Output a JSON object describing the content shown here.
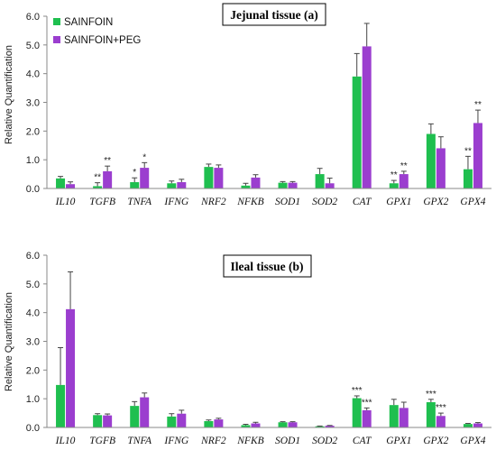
{
  "colors": {
    "sainfoin": "#1fbf4f",
    "sainfoin_peg": "#9b3ecf",
    "errorbar": "#444444",
    "axis": "#888888"
  },
  "chart_data": [
    {
      "type": "bar",
      "title": "Jejunal tissue (a)",
      "ylabel": "Relative Quantification",
      "ylim": [
        0,
        6
      ],
      "yticks": [
        "0.0",
        "1.0",
        "2.0",
        "3.0",
        "4.0",
        "5.0",
        "6.0"
      ],
      "categories": [
        "IL10",
        "TGFB",
        "TNFA",
        "IFNG",
        "NRF2",
        "NFKB",
        "SOD1",
        "SOD2",
        "CAT",
        "GPX1",
        "GPX2",
        "GPX4"
      ],
      "legend": [
        "SAINFOIN",
        "SAINFOIN+PEG"
      ],
      "series": [
        {
          "name": "SAINFOIN",
          "values": [
            0.35,
            0.08,
            0.22,
            0.18,
            0.75,
            0.1,
            0.2,
            0.5,
            3.9,
            0.18,
            1.9,
            0.67
          ],
          "errors": [
            0.07,
            0.12,
            0.15,
            0.08,
            0.1,
            0.08,
            0.04,
            0.2,
            0.8,
            0.1,
            0.35,
            0.45
          ],
          "sig": [
            "",
            "**",
            "*",
            "",
            "",
            "",
            "",
            "",
            "",
            "**",
            "",
            "**"
          ]
        },
        {
          "name": "SAINFOIN+PEG",
          "values": [
            0.15,
            0.6,
            0.72,
            0.22,
            0.72,
            0.38,
            0.2,
            0.18,
            4.95,
            0.5,
            1.4,
            2.28
          ],
          "errors": [
            0.08,
            0.18,
            0.18,
            0.1,
            0.1,
            0.1,
            0.04,
            0.18,
            0.8,
            0.1,
            0.4,
            0.45
          ],
          "sig": [
            "",
            "**",
            "*",
            "",
            "",
            "",
            "",
            "",
            "",
            "**",
            "",
            "**"
          ]
        }
      ]
    },
    {
      "type": "bar",
      "title": "Ileal tissue (b)",
      "ylabel": "Relative Quantification",
      "ylim": [
        0,
        6
      ],
      "yticks": [
        "0.0",
        "1.0",
        "2.0",
        "3.0",
        "4.0",
        "5.0",
        "6.0"
      ],
      "categories": [
        "IL10",
        "TGFB",
        "TNFA",
        "IFNG",
        "NRF2",
        "NFKB",
        "SOD1",
        "SOD2",
        "CAT",
        "GPX1",
        "GPX2",
        "GPX4"
      ],
      "series": [
        {
          "name": "SAINFOIN",
          "values": [
            1.48,
            0.43,
            0.75,
            0.38,
            0.22,
            0.08,
            0.18,
            0.04,
            1.02,
            0.78,
            0.88,
            0.12
          ],
          "errors": [
            1.3,
            0.05,
            0.15,
            0.1,
            0.04,
            0.03,
            0.02,
            0.01,
            0.08,
            0.2,
            0.1,
            0.02
          ],
          "sig": [
            "",
            "",
            "",
            "",
            "",
            "",
            "",
            "",
            "***",
            "",
            "***",
            ""
          ]
        },
        {
          "name": "SAINFOIN+PEG",
          "values": [
            4.12,
            0.42,
            1.05,
            0.48,
            0.28,
            0.14,
            0.18,
            0.06,
            0.6,
            0.68,
            0.4,
            0.14
          ],
          "errors": [
            1.3,
            0.05,
            0.15,
            0.12,
            0.04,
            0.04,
            0.02,
            0.01,
            0.08,
            0.2,
            0.1,
            0.03
          ],
          "sig": [
            "",
            "",
            "",
            "",
            "",
            "",
            "",
            "",
            "***",
            "",
            "***",
            ""
          ]
        }
      ]
    }
  ]
}
